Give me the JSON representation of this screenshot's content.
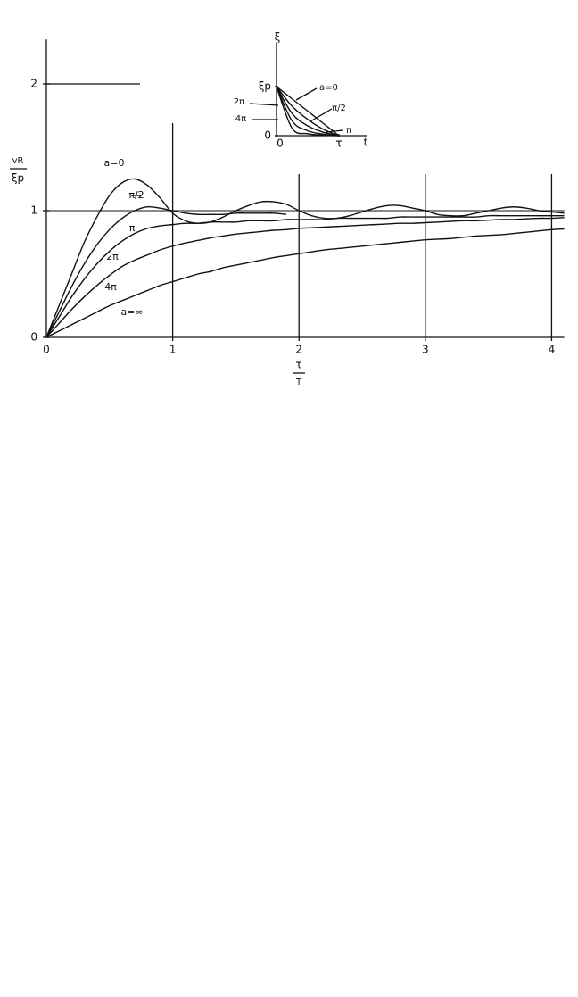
{
  "chart_data": [
    {
      "type": "line",
      "ylabel_top": "vR",
      "ylabel_bottom": "ξp",
      "xlabel_top": "τ",
      "xlabel_bottom": "T",
      "annotation": "a=∞",
      "x": [
        0,
        0.1,
        0.2,
        0.3,
        0.4,
        0.5,
        0.6,
        0.7,
        0.8,
        0.9,
        1.0,
        1.1,
        1.2,
        1.3,
        1.4,
        1.5,
        1.6,
        1.7,
        1.8,
        1.9,
        2.0,
        2.1,
        2.2,
        2.3,
        2.4,
        2.5,
        2.6,
        2.7,
        2.8,
        2.9,
        3.0,
        3.1,
        3.2,
        3.3,
        3.4,
        3.5,
        3.6,
        3.7,
        3.8,
        3.9,
        4.0,
        4.1
      ],
      "series": [
        {
          "name": "a=0",
          "color": "#111111",
          "values": [
            0,
            0.25,
            0.5,
            0.75,
            0.95,
            1.12,
            1.22,
            1.25,
            1.2,
            1.1,
            0.98,
            0.92,
            0.9,
            0.91,
            0.95,
            1.0,
            1.04,
            1.07,
            1.07,
            1.05,
            1.0,
            0.96,
            0.94,
            0.94,
            0.96,
            0.99,
            1.02,
            1.04,
            1.04,
            1.02,
            1.0,
            0.97,
            0.96,
            0.96,
            0.98,
            1.0,
            1.02,
            1.03,
            1.02,
            1.0,
            0.99,
            0.98
          ]
        },
        {
          "name": "π/2",
          "color": "#111111",
          "values": [
            0,
            0.2,
            0.4,
            0.58,
            0.73,
            0.85,
            0.94,
            1.0,
            1.03,
            1.02,
            1.0,
            0.98,
            0.97,
            0.97,
            0.97,
            0.98,
            0.98,
            0.98,
            0.98,
            0.97,
            null,
            null,
            null,
            null,
            null,
            null,
            null,
            null,
            null,
            null,
            null,
            null,
            null,
            null,
            null,
            null,
            null,
            null,
            null,
            null,
            null,
            null
          ]
        },
        {
          "name": "π",
          "color": "#111111",
          "values": [
            0,
            0.16,
            0.32,
            0.46,
            0.58,
            0.68,
            0.76,
            0.82,
            0.86,
            0.88,
            0.89,
            0.9,
            0.9,
            0.91,
            0.91,
            0.91,
            0.92,
            0.92,
            0.92,
            0.93,
            0.93,
            0.93,
            0.93,
            0.94,
            0.94,
            0.94,
            0.94,
            0.94,
            0.95,
            0.95,
            0.95,
            0.95,
            0.95,
            0.95,
            0.95,
            0.96,
            0.96,
            0.96,
            0.96,
            0.96,
            0.96,
            0.96
          ]
        },
        {
          "name": "2π",
          "color": "#111111",
          "values": [
            0,
            0.11,
            0.22,
            0.32,
            0.41,
            0.49,
            0.56,
            0.61,
            0.65,
            0.69,
            0.72,
            0.745,
            0.765,
            0.785,
            0.8,
            0.815,
            0.825,
            0.835,
            0.845,
            0.85,
            0.86,
            0.865,
            0.87,
            0.875,
            0.88,
            0.885,
            0.89,
            0.895,
            0.9,
            0.9,
            0.905,
            0.91,
            0.915,
            0.92,
            0.92,
            0.925,
            0.93,
            0.93,
            0.935,
            0.94,
            0.94,
            0.945
          ]
        },
        {
          "name": "4π",
          "color": "#111111",
          "values": [
            0,
            0.05,
            0.1,
            0.15,
            0.2,
            0.25,
            0.29,
            0.33,
            0.37,
            0.41,
            0.44,
            0.47,
            0.5,
            0.52,
            0.55,
            0.57,
            0.59,
            0.61,
            0.63,
            0.645,
            0.66,
            0.675,
            0.69,
            0.7,
            0.71,
            0.72,
            0.73,
            0.74,
            0.75,
            0.76,
            0.77,
            0.775,
            0.78,
            0.79,
            0.8,
            0.805,
            0.81,
            0.82,
            0.83,
            0.84,
            0.85,
            0.855
          ]
        }
      ],
      "xlim": [
        0,
        4.1
      ],
      "ylim": [
        0,
        2.35
      ],
      "xticks": [
        0,
        1,
        2,
        3,
        4
      ],
      "yticks": [
        0,
        1,
        2
      ]
    },
    {
      "type": "line",
      "xlabel": "t",
      "ylabel": "ξ",
      "x": [
        0,
        0.25,
        0.5,
        0.75,
        1
      ],
      "series": [
        {
          "name": "a=0",
          "color": "#111111",
          "values": [
            1,
            0.75,
            0.5,
            0.25,
            0
          ]
        },
        {
          "name": "π/2",
          "color": "#111111",
          "values": [
            1,
            0.6,
            0.33,
            0.13,
            0
          ]
        },
        {
          "name": "π",
          "color": "#111111",
          "values": [
            1,
            0.45,
            0.2,
            0.07,
            0
          ]
        },
        {
          "name": "2π",
          "color": "#111111",
          "values": [
            1,
            0.3,
            0.1,
            0.03,
            0
          ]
        },
        {
          "name": "4π",
          "color": "#111111",
          "values": [
            1,
            0.15,
            0.04,
            0.01,
            0
          ]
        }
      ],
      "xlim": [
        0,
        1.45
      ],
      "ylim": [
        0,
        2
      ],
      "xticks": [
        {
          "value": 0,
          "label": "0"
        },
        {
          "value": 1,
          "label": "τ"
        }
      ],
      "yticks": [
        {
          "value": 0,
          "label": "0"
        },
        {
          "value": 1,
          "label": "ξp"
        }
      ]
    }
  ]
}
